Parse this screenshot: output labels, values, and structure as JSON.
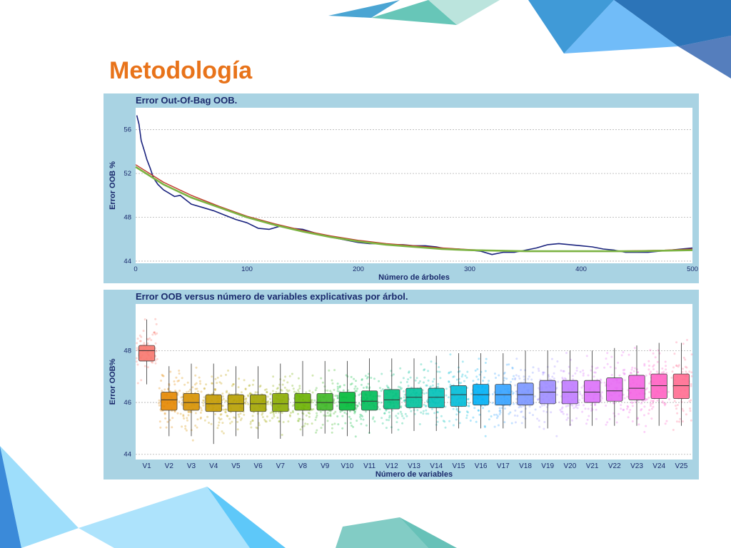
{
  "slide": {
    "title": "Metodología"
  },
  "colors": {
    "title": "#e8731a",
    "panel_bg": "#a9d3e3",
    "text_dark": "#1a2a6c",
    "oob_line": "#1a237e",
    "fit_red": "#c0392b",
    "fit_green": "#7cb342"
  },
  "chart_data": [
    {
      "type": "line",
      "title": "Error Out-Of-Bag OOB.",
      "xlabel": "Número de árboles",
      "ylabel": "Error OOB %",
      "xlim": [
        0,
        500
      ],
      "ylim": [
        43.8,
        58
      ],
      "xticks": [
        0,
        100,
        200,
        300,
        400,
        500
      ],
      "yticks": [
        44,
        48,
        52,
        56
      ],
      "grid": true,
      "series": [
        {
          "x": [
            1,
            3,
            5,
            8,
            10,
            13,
            16,
            20,
            25,
            30,
            35,
            40,
            45,
            50,
            60,
            70,
            80,
            90,
            100,
            110,
            120,
            130,
            140,
            150,
            160,
            170,
            180,
            190,
            200,
            210,
            220,
            230,
            240,
            250,
            260,
            270,
            280,
            290,
            300,
            310,
            320,
            330,
            340,
            350,
            360,
            370,
            380,
            390,
            400,
            410,
            420,
            430,
            440,
            450,
            460,
            470,
            480,
            490,
            500
          ],
          "y": [
            57.3,
            56.5,
            55.0,
            54.0,
            53.3,
            52.5,
            51.6,
            51.0,
            50.5,
            50.2,
            49.9,
            50.0,
            49.6,
            49.2,
            48.9,
            48.6,
            48.2,
            47.8,
            47.5,
            47.0,
            46.9,
            47.2,
            47.0,
            46.9,
            46.6,
            46.3,
            46.1,
            45.9,
            45.7,
            45.6,
            45.6,
            45.5,
            45.5,
            45.4,
            45.4,
            45.3,
            45.1,
            45.1,
            45.0,
            44.9,
            44.6,
            44.8,
            44.8,
            45.0,
            45.2,
            45.5,
            45.6,
            45.5,
            45.4,
            45.3,
            45.1,
            45.0,
            44.8,
            44.8,
            44.8,
            44.9,
            45.0,
            45.1,
            45.2
          ]
        },
        {
          "x": [
            0,
            25,
            50,
            75,
            100,
            125,
            150,
            175,
            200,
            225,
            250,
            275,
            300,
            325,
            350,
            375,
            400,
            425,
            450,
            475,
            500
          ],
          "y": [
            52.6,
            51.0,
            49.8,
            48.9,
            48.0,
            47.3,
            46.7,
            46.2,
            45.8,
            45.5,
            45.3,
            45.1,
            45.0,
            44.95,
            44.9,
            44.9,
            44.9,
            44.9,
            44.9,
            44.95,
            45.0
          ]
        },
        {
          "x": [
            0,
            25,
            50,
            75,
            100,
            125,
            150,
            175,
            200,
            225,
            250,
            275,
            300,
            325,
            350,
            375,
            400,
            425,
            450,
            475,
            500
          ],
          "y": [
            52.8,
            51.2,
            50.0,
            49.0,
            48.1,
            47.4,
            46.8,
            46.3,
            45.9,
            45.6,
            45.4,
            45.2,
            45.05,
            44.95,
            44.9,
            44.9,
            44.9,
            44.9,
            44.95,
            45.0,
            45.1
          ]
        }
      ]
    },
    {
      "type": "boxplot",
      "title": "Error OOB versus número de variables explicativas por árbol.",
      "xlabel": "Número de variables",
      "ylabel": "Error OOB%",
      "ylim": [
        43.8,
        49.8
      ],
      "yticks": [
        44,
        46,
        48
      ],
      "grid": true,
      "categories": [
        "V1",
        "V2",
        "V3",
        "V4",
        "V5",
        "V6",
        "V7",
        "V8",
        "V9",
        "V10",
        "V11",
        "V12",
        "V13",
        "V14",
        "V15",
        "V16",
        "V17",
        "V18",
        "V19",
        "V20",
        "V21",
        "V22",
        "V23",
        "V24",
        "V25"
      ],
      "box_colors": [
        "#f8766d",
        "#e58700",
        "#d69100",
        "#c49a00",
        "#b79f00",
        "#a3a500",
        "#8aab00",
        "#6bb100",
        "#3cb624",
        "#00ba38",
        "#00bc59",
        "#00bf7d",
        "#00c19c",
        "#00c0b8",
        "#00bcd8",
        "#00b0f6",
        "#35a2ff",
        "#7b96ff",
        "#9e8cff",
        "#c07cff",
        "#dc71fa",
        "#e76bf3",
        "#f564e3",
        "#ff61c3",
        "#ff6c91"
      ],
      "whisker_low": [
        46.7,
        44.7,
        44.7,
        44.4,
        44.7,
        44.6,
        44.6,
        44.7,
        44.8,
        44.7,
        44.8,
        44.8,
        44.9,
        44.9,
        45.0,
        45.0,
        45.0,
        45.0,
        45.0,
        45.1,
        45.1,
        45.1,
        45.1,
        45.1,
        45.1
      ],
      "q1": [
        47.6,
        45.7,
        45.7,
        45.65,
        45.65,
        45.65,
        45.65,
        45.7,
        45.7,
        45.7,
        45.7,
        45.75,
        45.8,
        45.8,
        45.85,
        45.9,
        45.9,
        45.9,
        45.95,
        45.95,
        46.0,
        46.05,
        46.1,
        46.15,
        46.15
      ],
      "median": [
        48.0,
        46.1,
        46.0,
        45.95,
        45.95,
        45.95,
        45.95,
        46.0,
        46.0,
        46.0,
        46.05,
        46.1,
        46.2,
        46.2,
        46.3,
        46.3,
        46.3,
        46.3,
        46.4,
        46.4,
        46.4,
        46.45,
        46.55,
        46.65,
        46.65
      ],
      "q3": [
        48.2,
        46.4,
        46.35,
        46.3,
        46.3,
        46.3,
        46.35,
        46.35,
        46.35,
        46.4,
        46.45,
        46.5,
        46.55,
        46.55,
        46.65,
        46.7,
        46.7,
        46.75,
        46.85,
        46.85,
        46.85,
        46.95,
        47.05,
        47.1,
        47.1
      ],
      "whisker_high": [
        49.2,
        47.4,
        47.5,
        47.5,
        47.4,
        47.4,
        47.5,
        47.6,
        47.6,
        47.6,
        47.7,
        47.7,
        47.7,
        47.8,
        47.9,
        47.9,
        47.9,
        48.0,
        48.0,
        48.0,
        48.0,
        48.1,
        48.2,
        48.3,
        48.3
      ]
    }
  ]
}
